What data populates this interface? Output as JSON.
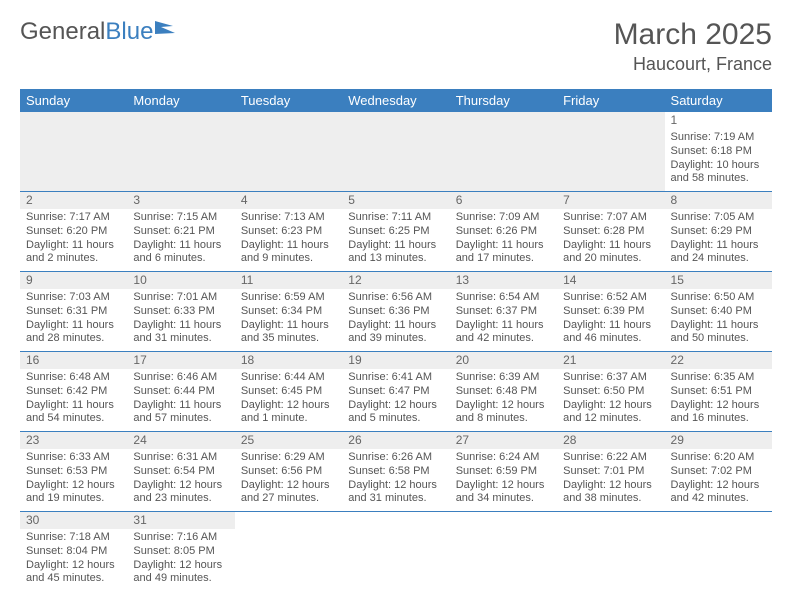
{
  "logo": {
    "part1": "General",
    "part2": "Blue"
  },
  "title": {
    "month": "March 2025",
    "location": "Haucourt, France"
  },
  "colors": {
    "accent": "#3b7fbf",
    "header_text": "#ffffff",
    "body_text": "#555555",
    "daynum_bg": "#eeeeee",
    "grid_line": "#3b7fbf"
  },
  "weekday_labels": [
    "Sunday",
    "Monday",
    "Tuesday",
    "Wednesday",
    "Thursday",
    "Friday",
    "Saturday"
  ],
  "weeks": [
    [
      null,
      null,
      null,
      null,
      null,
      null,
      {
        "n": "1",
        "sr": "Sunrise: 7:19 AM",
        "ss": "Sunset: 6:18 PM",
        "dl": "Daylight: 10 hours and 58 minutes."
      }
    ],
    [
      {
        "n": "2",
        "sr": "Sunrise: 7:17 AM",
        "ss": "Sunset: 6:20 PM",
        "dl": "Daylight: 11 hours and 2 minutes."
      },
      {
        "n": "3",
        "sr": "Sunrise: 7:15 AM",
        "ss": "Sunset: 6:21 PM",
        "dl": "Daylight: 11 hours and 6 minutes."
      },
      {
        "n": "4",
        "sr": "Sunrise: 7:13 AM",
        "ss": "Sunset: 6:23 PM",
        "dl": "Daylight: 11 hours and 9 minutes."
      },
      {
        "n": "5",
        "sr": "Sunrise: 7:11 AM",
        "ss": "Sunset: 6:25 PM",
        "dl": "Daylight: 11 hours and 13 minutes."
      },
      {
        "n": "6",
        "sr": "Sunrise: 7:09 AM",
        "ss": "Sunset: 6:26 PM",
        "dl": "Daylight: 11 hours and 17 minutes."
      },
      {
        "n": "7",
        "sr": "Sunrise: 7:07 AM",
        "ss": "Sunset: 6:28 PM",
        "dl": "Daylight: 11 hours and 20 minutes."
      },
      {
        "n": "8",
        "sr": "Sunrise: 7:05 AM",
        "ss": "Sunset: 6:29 PM",
        "dl": "Daylight: 11 hours and 24 minutes."
      }
    ],
    [
      {
        "n": "9",
        "sr": "Sunrise: 7:03 AM",
        "ss": "Sunset: 6:31 PM",
        "dl": "Daylight: 11 hours and 28 minutes."
      },
      {
        "n": "10",
        "sr": "Sunrise: 7:01 AM",
        "ss": "Sunset: 6:33 PM",
        "dl": "Daylight: 11 hours and 31 minutes."
      },
      {
        "n": "11",
        "sr": "Sunrise: 6:59 AM",
        "ss": "Sunset: 6:34 PM",
        "dl": "Daylight: 11 hours and 35 minutes."
      },
      {
        "n": "12",
        "sr": "Sunrise: 6:56 AM",
        "ss": "Sunset: 6:36 PM",
        "dl": "Daylight: 11 hours and 39 minutes."
      },
      {
        "n": "13",
        "sr": "Sunrise: 6:54 AM",
        "ss": "Sunset: 6:37 PM",
        "dl": "Daylight: 11 hours and 42 minutes."
      },
      {
        "n": "14",
        "sr": "Sunrise: 6:52 AM",
        "ss": "Sunset: 6:39 PM",
        "dl": "Daylight: 11 hours and 46 minutes."
      },
      {
        "n": "15",
        "sr": "Sunrise: 6:50 AM",
        "ss": "Sunset: 6:40 PM",
        "dl": "Daylight: 11 hours and 50 minutes."
      }
    ],
    [
      {
        "n": "16",
        "sr": "Sunrise: 6:48 AM",
        "ss": "Sunset: 6:42 PM",
        "dl": "Daylight: 11 hours and 54 minutes."
      },
      {
        "n": "17",
        "sr": "Sunrise: 6:46 AM",
        "ss": "Sunset: 6:44 PM",
        "dl": "Daylight: 11 hours and 57 minutes."
      },
      {
        "n": "18",
        "sr": "Sunrise: 6:44 AM",
        "ss": "Sunset: 6:45 PM",
        "dl": "Daylight: 12 hours and 1 minute."
      },
      {
        "n": "19",
        "sr": "Sunrise: 6:41 AM",
        "ss": "Sunset: 6:47 PM",
        "dl": "Daylight: 12 hours and 5 minutes."
      },
      {
        "n": "20",
        "sr": "Sunrise: 6:39 AM",
        "ss": "Sunset: 6:48 PM",
        "dl": "Daylight: 12 hours and 8 minutes."
      },
      {
        "n": "21",
        "sr": "Sunrise: 6:37 AM",
        "ss": "Sunset: 6:50 PM",
        "dl": "Daylight: 12 hours and 12 minutes."
      },
      {
        "n": "22",
        "sr": "Sunrise: 6:35 AM",
        "ss": "Sunset: 6:51 PM",
        "dl": "Daylight: 12 hours and 16 minutes."
      }
    ],
    [
      {
        "n": "23",
        "sr": "Sunrise: 6:33 AM",
        "ss": "Sunset: 6:53 PM",
        "dl": "Daylight: 12 hours and 19 minutes."
      },
      {
        "n": "24",
        "sr": "Sunrise: 6:31 AM",
        "ss": "Sunset: 6:54 PM",
        "dl": "Daylight: 12 hours and 23 minutes."
      },
      {
        "n": "25",
        "sr": "Sunrise: 6:29 AM",
        "ss": "Sunset: 6:56 PM",
        "dl": "Daylight: 12 hours and 27 minutes."
      },
      {
        "n": "26",
        "sr": "Sunrise: 6:26 AM",
        "ss": "Sunset: 6:58 PM",
        "dl": "Daylight: 12 hours and 31 minutes."
      },
      {
        "n": "27",
        "sr": "Sunrise: 6:24 AM",
        "ss": "Sunset: 6:59 PM",
        "dl": "Daylight: 12 hours and 34 minutes."
      },
      {
        "n": "28",
        "sr": "Sunrise: 6:22 AM",
        "ss": "Sunset: 7:01 PM",
        "dl": "Daylight: 12 hours and 38 minutes."
      },
      {
        "n": "29",
        "sr": "Sunrise: 6:20 AM",
        "ss": "Sunset: 7:02 PM",
        "dl": "Daylight: 12 hours and 42 minutes."
      }
    ],
    [
      {
        "n": "30",
        "sr": "Sunrise: 7:18 AM",
        "ss": "Sunset: 8:04 PM",
        "dl": "Daylight: 12 hours and 45 minutes."
      },
      {
        "n": "31",
        "sr": "Sunrise: 7:16 AM",
        "ss": "Sunset: 8:05 PM",
        "dl": "Daylight: 12 hours and 49 minutes."
      },
      null,
      null,
      null,
      null,
      null
    ]
  ]
}
